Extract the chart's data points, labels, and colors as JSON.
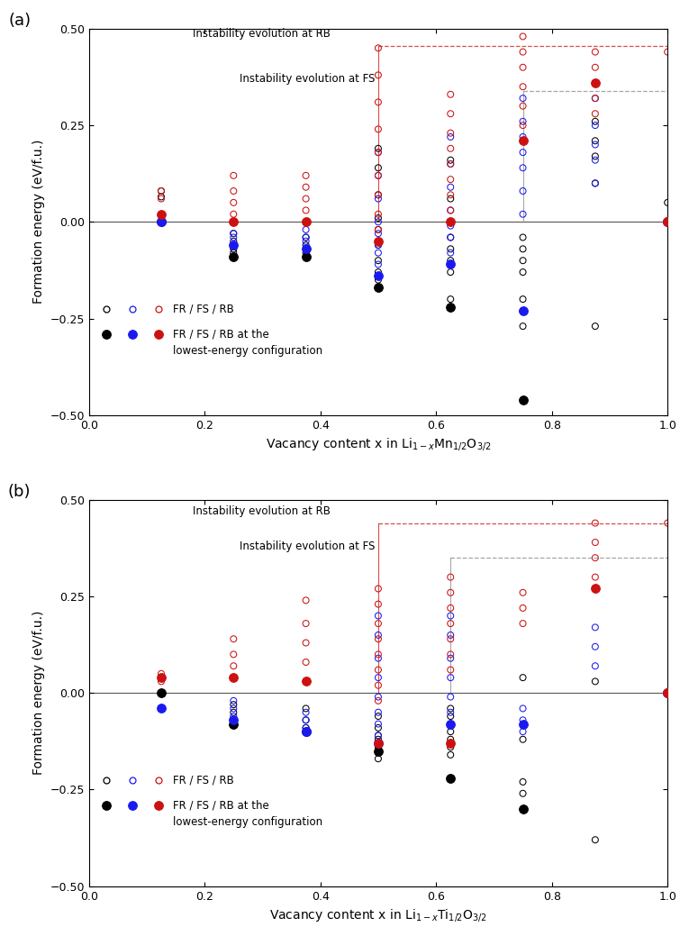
{
  "panel_a": {
    "title_label": "(a)",
    "xlabel": "Vacancy content x in Li$_{1-x}$Mn$_{1/2}$O$_{3/2}$",
    "ylabel": "Formation energy (eV/f.u.)",
    "ylim": [
      -0.5,
      0.5
    ],
    "xlim": [
      0.0,
      1.0
    ],
    "annotation_RB": "Instability evolution at RB",
    "annotation_FS": "Instability evolution at FS",
    "hline_RB_y": 0.456,
    "hline_FS_y": 0.34,
    "vline_RB_x": 0.5,
    "vline_FS_x": 0.75,
    "FR_open_x": [
      0.125,
      0.125,
      0.25,
      0.25,
      0.25,
      0.25,
      0.375,
      0.375,
      0.375,
      0.375,
      0.5,
      0.5,
      0.5,
      0.5,
      0.5,
      0.5,
      0.5,
      0.5,
      0.5,
      0.5,
      0.625,
      0.625,
      0.625,
      0.625,
      0.625,
      0.625,
      0.625,
      0.625,
      0.75,
      0.75,
      0.75,
      0.75,
      0.75,
      0.75,
      0.75,
      0.875,
      0.875,
      0.875,
      0.875,
      0.875,
      1.0
    ],
    "FR_open_y": [
      0.065,
      0.08,
      -0.03,
      -0.05,
      -0.07,
      -0.08,
      -0.04,
      -0.06,
      -0.08,
      -0.09,
      0.19,
      0.14,
      0.07,
      0.01,
      -0.02,
      -0.06,
      -0.1,
      -0.13,
      -0.15,
      -0.17,
      0.16,
      0.06,
      0.0,
      -0.04,
      -0.07,
      -0.1,
      -0.13,
      -0.2,
      -0.04,
      -0.07,
      -0.1,
      -0.13,
      -0.2,
      -0.23,
      -0.27,
      0.26,
      0.21,
      0.17,
      0.1,
      -0.27,
      0.05
    ],
    "FS_open_x": [
      0.125,
      0.25,
      0.25,
      0.25,
      0.25,
      0.375,
      0.375,
      0.375,
      0.375,
      0.5,
      0.5,
      0.5,
      0.5,
      0.5,
      0.5,
      0.5,
      0.5,
      0.5,
      0.625,
      0.625,
      0.625,
      0.625,
      0.625,
      0.625,
      0.625,
      0.625,
      0.75,
      0.75,
      0.75,
      0.75,
      0.75,
      0.75,
      0.75,
      0.875,
      0.875,
      0.875,
      0.875,
      0.875,
      1.0
    ],
    "FS_open_y": [
      0.02,
      0.0,
      -0.03,
      -0.04,
      -0.06,
      -0.02,
      -0.04,
      -0.05,
      -0.07,
      0.18,
      0.12,
      0.06,
      0.0,
      -0.03,
      -0.06,
      -0.08,
      -0.11,
      -0.14,
      0.22,
      0.15,
      0.09,
      0.03,
      -0.01,
      -0.04,
      -0.08,
      -0.11,
      0.32,
      0.26,
      0.22,
      0.18,
      0.14,
      0.08,
      0.02,
      0.32,
      0.25,
      0.2,
      0.16,
      0.1,
      0.0
    ],
    "RB_open_x": [
      0.125,
      0.125,
      0.25,
      0.25,
      0.25,
      0.25,
      0.375,
      0.375,
      0.375,
      0.375,
      0.375,
      0.5,
      0.5,
      0.5,
      0.5,
      0.5,
      0.5,
      0.5,
      0.5,
      0.5,
      0.5,
      0.625,
      0.625,
      0.625,
      0.625,
      0.625,
      0.625,
      0.625,
      0.625,
      0.625,
      0.75,
      0.75,
      0.75,
      0.75,
      0.75,
      0.75,
      0.75,
      0.875,
      0.875,
      0.875,
      0.875,
      0.875,
      1.0
    ],
    "RB_open_y": [
      0.08,
      0.06,
      0.12,
      0.08,
      0.05,
      0.02,
      0.12,
      0.09,
      0.06,
      0.03,
      0.0,
      0.45,
      0.38,
      0.31,
      0.24,
      0.18,
      0.12,
      0.07,
      0.02,
      -0.02,
      -0.05,
      0.33,
      0.28,
      0.23,
      0.19,
      0.15,
      0.11,
      0.07,
      0.03,
      0.0,
      0.48,
      0.44,
      0.4,
      0.35,
      0.3,
      0.25,
      0.21,
      0.44,
      0.4,
      0.36,
      0.32,
      0.28,
      0.44
    ],
    "FR_filled_x": [
      0.125,
      0.25,
      0.375,
      0.5,
      0.625,
      0.75,
      1.0
    ],
    "FR_filled_y": [
      0.0,
      -0.09,
      -0.09,
      -0.17,
      -0.22,
      -0.46,
      0.0
    ],
    "FS_filled_x": [
      0.125,
      0.25,
      0.375,
      0.5,
      0.625,
      0.75,
      1.0
    ],
    "FS_filled_y": [
      0.0,
      -0.06,
      -0.07,
      -0.14,
      -0.11,
      -0.23,
      0.0
    ],
    "RB_filled_x": [
      0.125,
      0.25,
      0.375,
      0.5,
      0.625,
      0.75,
      0.875,
      1.0
    ],
    "RB_filled_y": [
      0.02,
      0.0,
      0.0,
      -0.05,
      0.0,
      0.21,
      0.36,
      0.0
    ]
  },
  "panel_b": {
    "title_label": "(b)",
    "xlabel": "Vacancy content x in Li$_{1-x}$Ti$_{1/2}$O$_{3/2}$",
    "ylabel": "Formation energy (eV/f.u.)",
    "ylim": [
      -0.5,
      0.5
    ],
    "xlim": [
      0.0,
      1.0
    ],
    "annotation_RB": "Instability evolution at RB",
    "annotation_FS": "Instability evolution at FS",
    "hline_RB_y": 0.44,
    "hline_FS_y": 0.35,
    "vline_RB_x": 0.5,
    "vline_FS_x": 0.625,
    "FR_open_x": [
      0.125,
      0.125,
      0.25,
      0.25,
      0.25,
      0.25,
      0.375,
      0.375,
      0.375,
      0.375,
      0.5,
      0.5,
      0.5,
      0.5,
      0.5,
      0.5,
      0.5,
      0.5,
      0.625,
      0.625,
      0.625,
      0.625,
      0.625,
      0.625,
      0.625,
      0.625,
      0.75,
      0.75,
      0.75,
      0.75,
      0.875,
      0.875,
      1.0
    ],
    "FR_open_y": [
      0.04,
      0.0,
      -0.03,
      -0.05,
      -0.07,
      -0.08,
      -0.04,
      -0.07,
      -0.09,
      -0.1,
      -0.06,
      -0.09,
      -0.12,
      -0.14,
      -0.15,
      -0.17,
      -0.13,
      -0.11,
      -0.04,
      -0.06,
      -0.08,
      -0.1,
      -0.12,
      -0.14,
      -0.16,
      -0.22,
      0.04,
      -0.12,
      -0.23,
      -0.26,
      0.03,
      -0.38,
      0.0
    ],
    "FS_open_x": [
      0.125,
      0.25,
      0.25,
      0.25,
      0.25,
      0.375,
      0.375,
      0.375,
      0.375,
      0.5,
      0.5,
      0.5,
      0.5,
      0.5,
      0.5,
      0.5,
      0.5,
      0.625,
      0.625,
      0.625,
      0.625,
      0.625,
      0.625,
      0.625,
      0.75,
      0.75,
      0.75,
      0.875,
      0.875,
      0.875,
      1.0
    ],
    "FS_open_y": [
      -0.04,
      -0.02,
      -0.04,
      -0.06,
      -0.07,
      -0.05,
      -0.07,
      -0.09,
      -0.1,
      0.2,
      0.15,
      0.09,
      0.04,
      -0.01,
      -0.05,
      -0.08,
      -0.11,
      0.2,
      0.15,
      0.09,
      0.04,
      -0.01,
      -0.05,
      -0.08,
      -0.04,
      -0.07,
      -0.1,
      0.17,
      0.12,
      0.07,
      0.0
    ],
    "RB_open_x": [
      0.125,
      0.125,
      0.25,
      0.25,
      0.25,
      0.25,
      0.375,
      0.375,
      0.375,
      0.375,
      0.375,
      0.5,
      0.5,
      0.5,
      0.5,
      0.5,
      0.5,
      0.5,
      0.5,
      0.625,
      0.625,
      0.625,
      0.625,
      0.625,
      0.625,
      0.625,
      0.75,
      0.75,
      0.75,
      0.875,
      0.875,
      0.875,
      0.875,
      1.0
    ],
    "RB_open_y": [
      0.05,
      0.03,
      0.14,
      0.1,
      0.07,
      0.04,
      0.24,
      0.18,
      0.13,
      0.08,
      0.03,
      0.27,
      0.23,
      0.18,
      0.14,
      0.1,
      0.06,
      0.02,
      -0.02,
      0.3,
      0.26,
      0.22,
      0.18,
      0.14,
      0.1,
      0.06,
      0.26,
      0.22,
      0.18,
      0.44,
      0.39,
      0.35,
      0.3,
      0.44
    ],
    "FR_filled_x": [
      0.125,
      0.25,
      0.375,
      0.5,
      0.625,
      0.75,
      1.0
    ],
    "FR_filled_y": [
      0.0,
      -0.08,
      -0.1,
      -0.15,
      -0.22,
      -0.3,
      0.0
    ],
    "FS_filled_x": [
      0.125,
      0.25,
      0.375,
      0.5,
      0.625,
      0.75,
      1.0
    ],
    "FS_filled_y": [
      -0.04,
      -0.07,
      -0.1,
      -0.13,
      -0.08,
      -0.08,
      0.0
    ],
    "RB_filled_x": [
      0.125,
      0.25,
      0.375,
      0.5,
      0.625,
      0.875,
      1.0
    ],
    "RB_filled_y": [
      0.04,
      0.04,
      0.03,
      -0.13,
      -0.13,
      0.27,
      0.0
    ]
  },
  "colors": {
    "FR": "#000000",
    "FS": "#1a1aee",
    "RB": "#cc1111"
  },
  "marker_size_open": 5,
  "marker_size_filled": 7,
  "bg_color": "#ffffff"
}
